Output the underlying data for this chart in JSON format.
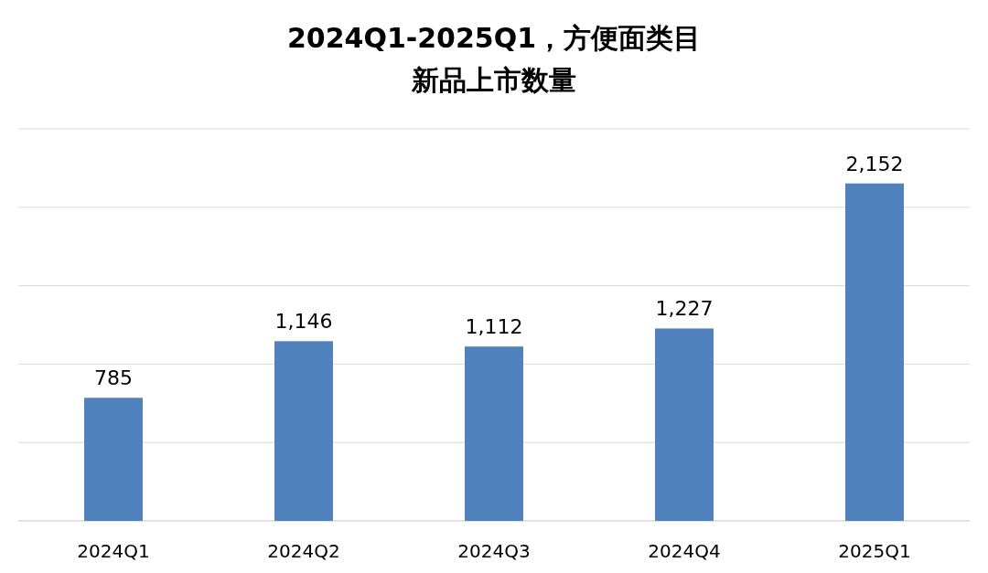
{
  "chart_data": {
    "type": "bar",
    "title": "2024Q1-2025Q1，方便面类目",
    "subtitle": "新品上市数量",
    "categories": [
      "2024Q1",
      "2024Q2",
      "2024Q3",
      "2024Q4",
      "2025Q1"
    ],
    "values": [
      785,
      1146,
      1112,
      1227,
      2152
    ],
    "value_labels": [
      "785",
      "1,146",
      "1,112",
      "1,227",
      "2,152"
    ],
    "color": "#4f81bd",
    "ylim": [
      0,
      2500
    ],
    "yticks": [
      {
        "value": 0,
        "label": null
      },
      {
        "value": 500,
        "label": null
      },
      {
        "value": 1000,
        "label": null
      },
      {
        "value": 1500,
        "label": null
      },
      {
        "value": 2000,
        "label": null
      },
      {
        "value": 2500,
        "label": null
      }
    ],
    "grid": "y",
    "tick_labels": "x"
  }
}
